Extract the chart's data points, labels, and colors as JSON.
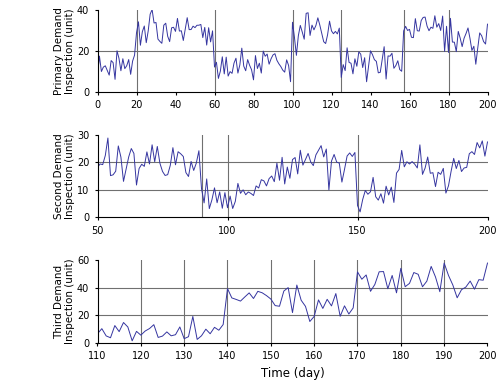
{
  "line_color": "#3535A0",
  "line_width": 0.7,
  "background_color": "#ffffff",
  "panel1": {
    "ylabel": "Primary Demand\nInspection (unit)",
    "xlim": [
      0,
      200
    ],
    "ylim": [
      0,
      40
    ],
    "yticks": [
      0,
      20,
      40
    ],
    "xticks": [
      0,
      20,
      40,
      60,
      80,
      100,
      120,
      140,
      160,
      180,
      200
    ],
    "vlines": [
      20,
      60,
      100,
      125,
      157,
      180
    ],
    "n": 201
  },
  "panel2": {
    "ylabel": "Second Demand\nInspection (unit)",
    "xlim": [
      50,
      200
    ],
    "ylim": [
      0,
      30
    ],
    "yticks": [
      0,
      10,
      20,
      30
    ],
    "xticks": [
      50,
      100,
      150,
      200
    ],
    "vlines": [
      90,
      100,
      150
    ],
    "n": 201
  },
  "panel3": {
    "ylabel": "Third Demand\nInspection (unit)",
    "xlim": [
      110,
      200
    ],
    "ylim": [
      0,
      60
    ],
    "yticks": [
      0,
      20,
      40,
      60
    ],
    "xticks": [
      110,
      120,
      130,
      140,
      150,
      160,
      170,
      180,
      190,
      200
    ],
    "vlines": [
      120,
      130,
      140,
      150,
      160,
      170,
      180,
      190
    ],
    "n": 201
  },
  "xlabel": "Time (day)",
  "tick_fontsize": 7,
  "label_fontsize": 7.5
}
